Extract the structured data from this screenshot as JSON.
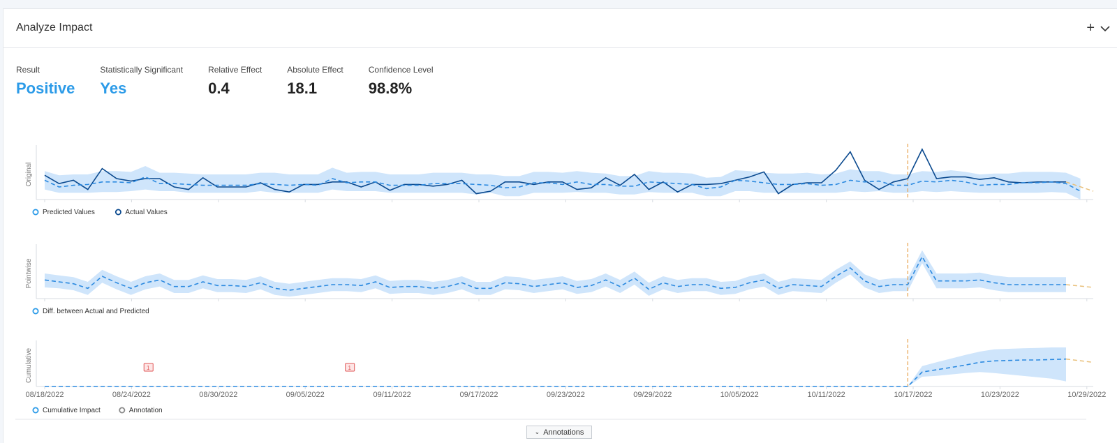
{
  "panel": {
    "title": "Analyze Impact",
    "add_icon": "plus-icon",
    "collapse_icon": "chevron-down-icon"
  },
  "metrics": [
    {
      "label": "Result",
      "value": "Positive",
      "highlight": true
    },
    {
      "label": "Statistically Significant",
      "value": "Yes",
      "highlight": true
    },
    {
      "label": "Relative Effect",
      "value": "0.4",
      "highlight": false
    },
    {
      "label": "Absolute Effect",
      "value": "18.1",
      "highlight": false
    },
    {
      "label": "Confidence Level",
      "value": "98.8%",
      "highlight": false
    }
  ],
  "colors": {
    "accent": "#2c9be8",
    "actual": "#0b4a8f",
    "predicted": "#2c8ae0",
    "band": "#cfe5fb",
    "event_line": "#e8a04a",
    "forecast": "#e9c07a",
    "annotation": "#e05555"
  },
  "annotations_button": "Annotations",
  "chart_data": [
    {
      "type": "line",
      "title": "",
      "ylabel": "Original",
      "x_ticks": [
        "08/18/2022",
        "08/24/2022",
        "08/30/2022",
        "09/05/2022",
        "09/11/2022",
        "09/17/2022",
        "09/23/2022",
        "09/29/2022",
        "10/05/2022",
        "10/11/2022",
        "10/17/2022",
        "10/23/2022",
        "10/29/2022"
      ],
      "intervention_index": 60,
      "series": [
        {
          "name": "Actual Values",
          "style": "solid",
          "values": [
            59,
            49,
            53,
            42,
            67,
            55,
            52,
            55,
            55,
            45,
            42,
            56,
            45,
            45,
            45,
            50,
            42,
            39,
            48,
            48,
            51,
            51,
            45,
            51,
            41,
            48,
            48,
            46,
            48,
            53,
            37,
            40,
            51,
            51,
            48,
            51,
            51,
            42,
            44,
            56,
            47,
            60,
            42,
            51,
            39,
            48,
            48,
            49,
            53,
            57,
            63,
            37,
            48,
            50,
            50,
            65,
            87,
            53,
            42,
            51,
            55,
            90,
            55,
            57,
            57,
            54,
            56,
            51,
            50,
            51,
            51,
            51
          ]
        },
        {
          "name": "Predicted Values",
          "style": "dashed",
          "values": [
            53,
            45,
            47,
            48,
            51,
            51,
            50,
            57,
            49,
            49,
            48,
            47,
            47,
            47,
            47,
            49,
            48,
            47,
            48,
            47,
            55,
            50,
            51,
            51,
            47,
            47,
            47,
            49,
            49,
            49,
            48,
            47,
            44,
            45,
            50,
            50,
            48,
            51,
            48,
            48,
            46,
            46,
            51,
            50,
            49,
            48,
            43,
            45,
            53,
            52,
            50,
            48,
            48,
            49,
            47,
            48,
            53,
            51,
            52,
            47,
            47,
            52,
            51,
            53,
            51,
            47,
            48,
            48,
            50,
            50,
            51,
            49,
            40
          ]
        },
        {
          "name": "Lower Bound",
          "style": "band",
          "values": [
            42,
            38,
            38,
            38,
            39,
            39,
            40,
            42,
            40,
            40,
            38,
            38,
            38,
            38,
            38,
            40,
            38,
            38,
            38,
            38,
            42,
            40,
            40,
            40,
            38,
            38,
            38,
            38,
            38,
            38,
            36,
            38,
            34,
            34,
            38,
            38,
            38,
            39,
            38,
            38,
            36,
            36,
            39,
            38,
            38,
            38,
            34,
            34,
            40,
            40,
            38,
            38,
            38,
            38,
            38,
            38,
            40,
            39,
            40,
            38,
            38,
            40,
            39,
            40,
            39,
            38,
            38,
            38,
            38,
            38,
            39,
            38,
            30
          ]
        },
        {
          "name": "Upper Bound",
          "style": "band",
          "values": [
            64,
            59,
            60,
            60,
            64,
            64,
            63,
            70,
            62,
            62,
            61,
            60,
            60,
            60,
            60,
            62,
            62,
            60,
            60,
            60,
            68,
            62,
            63,
            63,
            60,
            60,
            60,
            62,
            62,
            62,
            60,
            60,
            58,
            58,
            63,
            63,
            62,
            64,
            62,
            61,
            58,
            58,
            64,
            62,
            62,
            61,
            56,
            57,
            65,
            64,
            62,
            61,
            61,
            62,
            60,
            61,
            66,
            64,
            64,
            60,
            60,
            64,
            63,
            65,
            63,
            60,
            61,
            61,
            63,
            63,
            63,
            62,
            55
          ]
        }
      ],
      "forecast": {
        "name": "Forecast",
        "from_index": 71,
        "values": [
          51,
          40
        ]
      }
    },
    {
      "type": "line",
      "title": "",
      "ylabel": "Pointwise",
      "x_ticks": [
        "08/18/2022",
        "08/24/2022",
        "08/30/2022",
        "09/05/2022",
        "09/11/2022",
        "09/17/2022",
        "09/23/2022",
        "09/29/2022",
        "10/05/2022",
        "10/11/2022",
        "10/17/2022",
        "10/23/2022",
        "10/29/2022"
      ],
      "intervention_index": 60,
      "series": [
        {
          "name": "Diff. between Actual and Predicted",
          "style": "dashed",
          "values": [
            6,
            4,
            2,
            -3,
            10,
            3,
            -3,
            3,
            6,
            -1,
            -1,
            4,
            0,
            0,
            -1,
            3,
            -3,
            -5,
            -3,
            -1,
            1,
            1,
            0,
            4,
            -2,
            -1,
            -1,
            -3,
            -1,
            3,
            -3,
            -3,
            3,
            2,
            -1,
            1,
            3,
            -2,
            0,
            6,
            -1,
            8,
            -4,
            3,
            -1,
            1,
            1,
            -3,
            -2,
            3,
            6,
            -3,
            1,
            0,
            -1,
            10,
            19,
            5,
            -1,
            1,
            1,
            31,
            5,
            5,
            5,
            6,
            3,
            1,
            1,
            1,
            1,
            1
          ]
        },
        {
          "name": "Lower Bound",
          "style": "band",
          "values": [
            -2,
            -3,
            -5,
            -10,
            3,
            -4,
            -10,
            -4,
            -1,
            -8,
            -8,
            -3,
            -7,
            -7,
            -8,
            -4,
            -10,
            -12,
            -10,
            -8,
            -6,
            -6,
            -7,
            -3,
            -9,
            -8,
            -8,
            -10,
            -8,
            -4,
            -10,
            -10,
            -4,
            -5,
            -8,
            -6,
            -4,
            -9,
            -7,
            -1,
            -8,
            1,
            -11,
            -4,
            -8,
            -6,
            -6,
            -10,
            -9,
            -4,
            -1,
            -10,
            -6,
            -7,
            -8,
            3,
            12,
            -2,
            -8,
            -6,
            -6,
            24,
            -3,
            -3,
            -3,
            -2,
            -5,
            -7,
            -7,
            -7,
            -7,
            -7
          ]
        },
        {
          "name": "Upper Bound",
          "style": "band",
          "values": [
            13,
            11,
            9,
            4,
            17,
            10,
            4,
            10,
            13,
            6,
            6,
            11,
            7,
            7,
            6,
            10,
            4,
            2,
            4,
            6,
            8,
            8,
            7,
            11,
            5,
            6,
            6,
            4,
            6,
            10,
            4,
            4,
            10,
            9,
            6,
            8,
            10,
            5,
            7,
            13,
            6,
            15,
            3,
            10,
            6,
            8,
            8,
            4,
            5,
            10,
            13,
            4,
            8,
            7,
            6,
            17,
            26,
            12,
            6,
            8,
            8,
            38,
            13,
            13,
            13,
            14,
            11,
            9,
            9,
            9,
            9,
            9
          ]
        }
      ],
      "forecast": {
        "name": "Forecast",
        "from_index": 71,
        "values": [
          1,
          -2
        ]
      }
    },
    {
      "type": "line",
      "title": "",
      "ylabel": "Cumulative",
      "x_ticks": [
        "08/18/2022",
        "08/24/2022",
        "08/30/2022",
        "09/05/2022",
        "09/11/2022",
        "09/17/2022",
        "09/23/2022",
        "09/29/2022",
        "10/05/2022",
        "10/11/2022",
        "10/17/2022",
        "10/23/2022",
        "10/29/2022"
      ],
      "intervention_index": 60,
      "series": [
        {
          "name": "Cumulative Impact",
          "style": "dashed",
          "values": [
            0,
            0,
            0,
            0,
            0,
            0,
            0,
            0,
            0,
            0,
            0,
            0,
            0,
            0,
            0,
            0,
            0,
            0,
            0,
            0,
            0,
            0,
            0,
            0,
            0,
            0,
            0,
            0,
            0,
            0,
            0,
            0,
            0,
            0,
            0,
            0,
            0,
            0,
            0,
            0,
            0,
            0,
            0,
            0,
            0,
            0,
            0,
            0,
            0,
            0,
            0,
            0,
            0,
            0,
            0,
            0,
            0,
            0,
            0,
            0,
            0,
            31,
            36,
            41,
            46,
            52,
            55,
            56,
            57,
            57,
            58,
            59
          ]
        },
        {
          "name": "Lower Bound",
          "style": "band",
          "values": [
            0,
            0,
            0,
            0,
            0,
            0,
            0,
            0,
            0,
            0,
            0,
            0,
            0,
            0,
            0,
            0,
            0,
            0,
            0,
            0,
            0,
            0,
            0,
            0,
            0,
            0,
            0,
            0,
            0,
            0,
            0,
            0,
            0,
            0,
            0,
            0,
            0,
            0,
            0,
            0,
            0,
            0,
            0,
            0,
            0,
            0,
            0,
            0,
            0,
            0,
            0,
            0,
            0,
            0,
            0,
            0,
            0,
            0,
            0,
            0,
            0,
            21,
            23,
            26,
            29,
            31,
            29,
            26,
            23,
            20,
            17,
            11
          ]
        },
        {
          "name": "Upper Bound",
          "style": "band",
          "values": [
            0,
            0,
            0,
            0,
            0,
            0,
            0,
            0,
            0,
            0,
            0,
            0,
            0,
            0,
            0,
            0,
            0,
            0,
            0,
            0,
            0,
            0,
            0,
            0,
            0,
            0,
            0,
            0,
            0,
            0,
            0,
            0,
            0,
            0,
            0,
            0,
            0,
            0,
            0,
            0,
            0,
            0,
            0,
            0,
            0,
            0,
            0,
            0,
            0,
            0,
            0,
            0,
            0,
            0,
            0,
            0,
            0,
            0,
            0,
            0,
            0,
            44,
            52,
            60,
            68,
            75,
            80,
            81,
            82,
            83,
            84,
            84
          ]
        }
      ],
      "forecast": {
        "name": "Forecast",
        "from_index": 71,
        "values": [
          59,
          52
        ]
      },
      "annotations": [
        {
          "index": 7,
          "label": "1"
        },
        {
          "index": 21,
          "label": "1"
        }
      ]
    }
  ],
  "legends": [
    [
      "Predicted Values",
      "Actual Values"
    ],
    [
      "Diff. between Actual and Predicted"
    ],
    [
      "Cumulative Impact",
      "Annotation"
    ]
  ]
}
